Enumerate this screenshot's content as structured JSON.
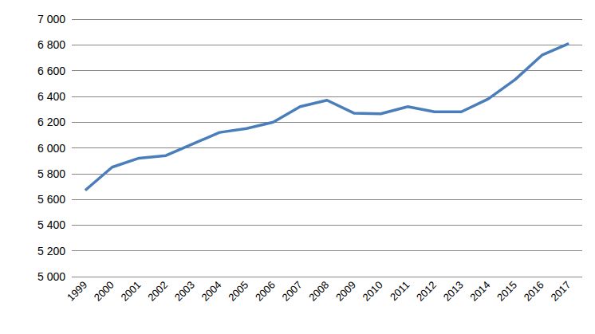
{
  "chart_data": {
    "type": "line",
    "categories": [
      "1999",
      "2000",
      "2001",
      "2002",
      "2003",
      "2004",
      "2005",
      "2006",
      "2007",
      "2008",
      "2009",
      "2010",
      "2011",
      "2012",
      "2013",
      "2014",
      "2015",
      "2016",
      "2017"
    ],
    "values": [
      5670,
      5850,
      5920,
      5940,
      6030,
      6120,
      6150,
      6200,
      6320,
      6370,
      6270,
      6265,
      6320,
      6280,
      6280,
      6380,
      6530,
      6720,
      6810
    ],
    "color": "#4a7ebb",
    "marker": "none",
    "ylim": [
      5000,
      7000
    ],
    "yticks": [
      {
        "value": 5000,
        "label": "5 000"
      },
      {
        "value": 5200,
        "label": "5 200"
      },
      {
        "value": 5400,
        "label": "5 400"
      },
      {
        "value": 5600,
        "label": "5 600"
      },
      {
        "value": 5800,
        "label": "5 800"
      },
      {
        "value": 6000,
        "label": "6 000"
      },
      {
        "value": 6200,
        "label": "6 200"
      },
      {
        "value": 6400,
        "label": "6 400"
      },
      {
        "value": 6600,
        "label": "6 600"
      },
      {
        "value": 6800,
        "label": "6 800"
      },
      {
        "value": 7000,
        "label": "7 000"
      }
    ],
    "grid": true
  }
}
